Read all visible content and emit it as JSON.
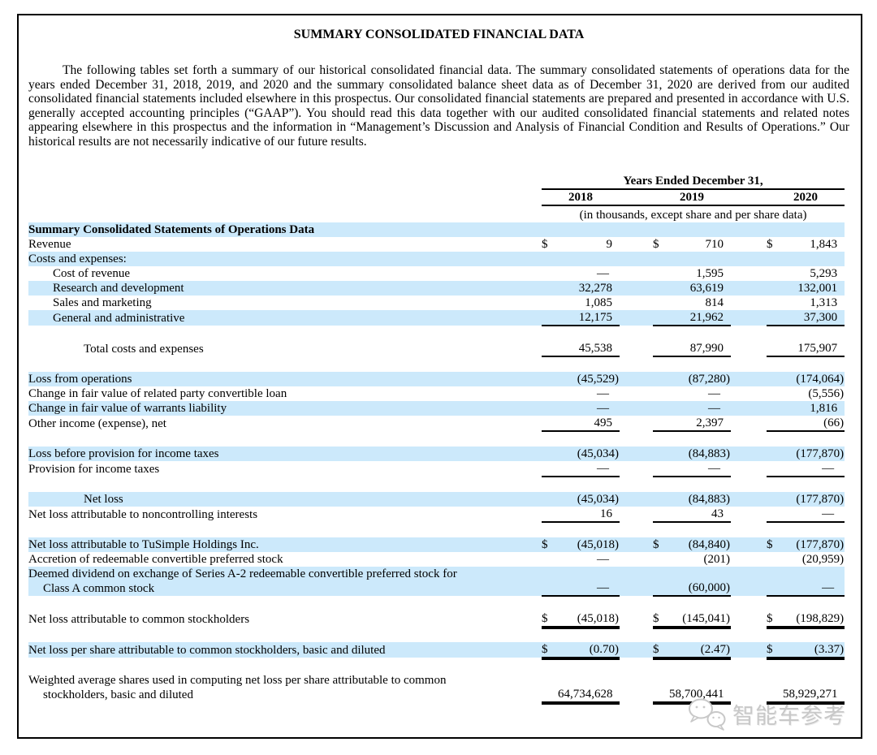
{
  "title": "SUMMARY CONSOLIDATED FINANCIAL DATA",
  "intro": "The following tables set forth a summary of our historical consolidated financial data. The summary consolidated statements of operations data for the years ended December 31, 2018, 2019, and 2020 and the summary consolidated balance sheet data as of December 31, 2020 are derived from our audited consolidated financial statements included elsewhere in this prospectus. Our consolidated financial statements are prepared and presented in accordance with U.S. generally accepted accounting principles (“GAAP”). You should read this data together with our audited consolidated financial statements and related notes appearing elsewhere in this prospectus and the information in “Management’s Discussion and Analysis of Financial Condition and Results of Operations.” Our historical results are not necessarily indicative of our future results.",
  "table": {
    "years_header": "Years Ended December 31,",
    "years": [
      "2018",
      "2019",
      "2020"
    ],
    "units_note": "(in thousands, except share and per share data)",
    "rows": [
      {
        "label": "Summary Consolidated Statements of Operations Data",
        "bold": true,
        "hl": true
      },
      {
        "label": "Revenue",
        "dollar": true,
        "v": [
          "9",
          "710",
          "1,843"
        ]
      },
      {
        "label": "Costs and expenses:",
        "hl": true
      },
      {
        "label": "Cost of revenue",
        "ind": 1,
        "v": [
          "—",
          "1,595",
          "5,293"
        ]
      },
      {
        "label": "Research and development",
        "ind": 1,
        "hl": true,
        "v": [
          "32,278",
          "63,619",
          "132,001"
        ]
      },
      {
        "label": "Sales and marketing",
        "ind": 1,
        "v": [
          "1,085",
          "814",
          "1,313"
        ]
      },
      {
        "label": "General and administrative",
        "ind": 1,
        "hl": true,
        "v": [
          "12,175",
          "21,962",
          "37,300"
        ],
        "u": 1
      },
      {
        "spacer": true
      },
      {
        "label": "Total costs and expenses",
        "ind": 2,
        "v": [
          "45,538",
          "87,990",
          "175,907"
        ],
        "u": 1
      },
      {
        "spacer": true
      },
      {
        "label": "Loss from operations",
        "hl": true,
        "v": [
          "(45,529)",
          "(87,280)",
          "(174,064)"
        ]
      },
      {
        "label": "Change in fair value of related party convertible loan",
        "v": [
          "—",
          "—",
          "(5,556)"
        ]
      },
      {
        "label": "Change in fair value of warrants liability",
        "hl": true,
        "v": [
          "—",
          "—",
          "1,816"
        ]
      },
      {
        "label": "Other income (expense), net",
        "v": [
          "495",
          "2,397",
          "(66)"
        ],
        "u": 1
      },
      {
        "spacer": true
      },
      {
        "label": "Loss before provision for income taxes",
        "hl": true,
        "v": [
          "(45,034)",
          "(84,883)",
          "(177,870)"
        ]
      },
      {
        "label": "Provision for income taxes",
        "v": [
          "—",
          "—",
          "—"
        ],
        "u": 1
      },
      {
        "spacer": true
      },
      {
        "label": "Net loss",
        "ind": 2,
        "hl": true,
        "v": [
          "(45,034)",
          "(84,883)",
          "(177,870)"
        ]
      },
      {
        "label": "Net loss attributable to noncontrolling interests",
        "v": [
          "16",
          "43",
          "—"
        ],
        "u": 1
      },
      {
        "spacer": true
      },
      {
        "label": "Net loss attributable to TuSimple Holdings Inc.",
        "hl": true,
        "dollar": true,
        "v": [
          "(45,018)",
          "(84,840)",
          "(177,870)"
        ]
      },
      {
        "label": "Accretion of redeemable convertible preferred stock",
        "v": [
          "—",
          "(201)",
          "(20,959)"
        ]
      },
      {
        "label": "Deemed dividend on exchange of Series A-2 redeemable convertible preferred stock for",
        "label2": "Class A common stock",
        "hl": true,
        "v": [
          "—",
          "(60,000)",
          "—"
        ],
        "u": 1
      },
      {
        "spacer": true
      },
      {
        "label": "Net loss attributable to common stockholders",
        "dollar": true,
        "v": [
          "(45,018)",
          "(145,041)",
          "(198,829)"
        ],
        "u": 2
      },
      {
        "spacer": true
      },
      {
        "label": "Net loss per share attributable to common stockholders, basic and diluted",
        "hl": true,
        "dollar": true,
        "v": [
          "(0.70)",
          "(2.47)",
          "(3.37)"
        ],
        "u": 2
      },
      {
        "spacer": true
      },
      {
        "label": "Weighted average shares used in computing net loss per share attributable to common",
        "label2": "stockholders, basic and diluted",
        "v": [
          "64,734,628",
          "58,700,441",
          "58,929,271"
        ],
        "u": 2
      }
    ]
  },
  "watermark": {
    "icon": "wechat-chat-bubbles-icon",
    "text": "智能车参考"
  },
  "colors": {
    "row_highlight": "#cce9fb",
    "text": "#000000",
    "border": "#000000",
    "watermark_gray": "#c8c8c8"
  }
}
